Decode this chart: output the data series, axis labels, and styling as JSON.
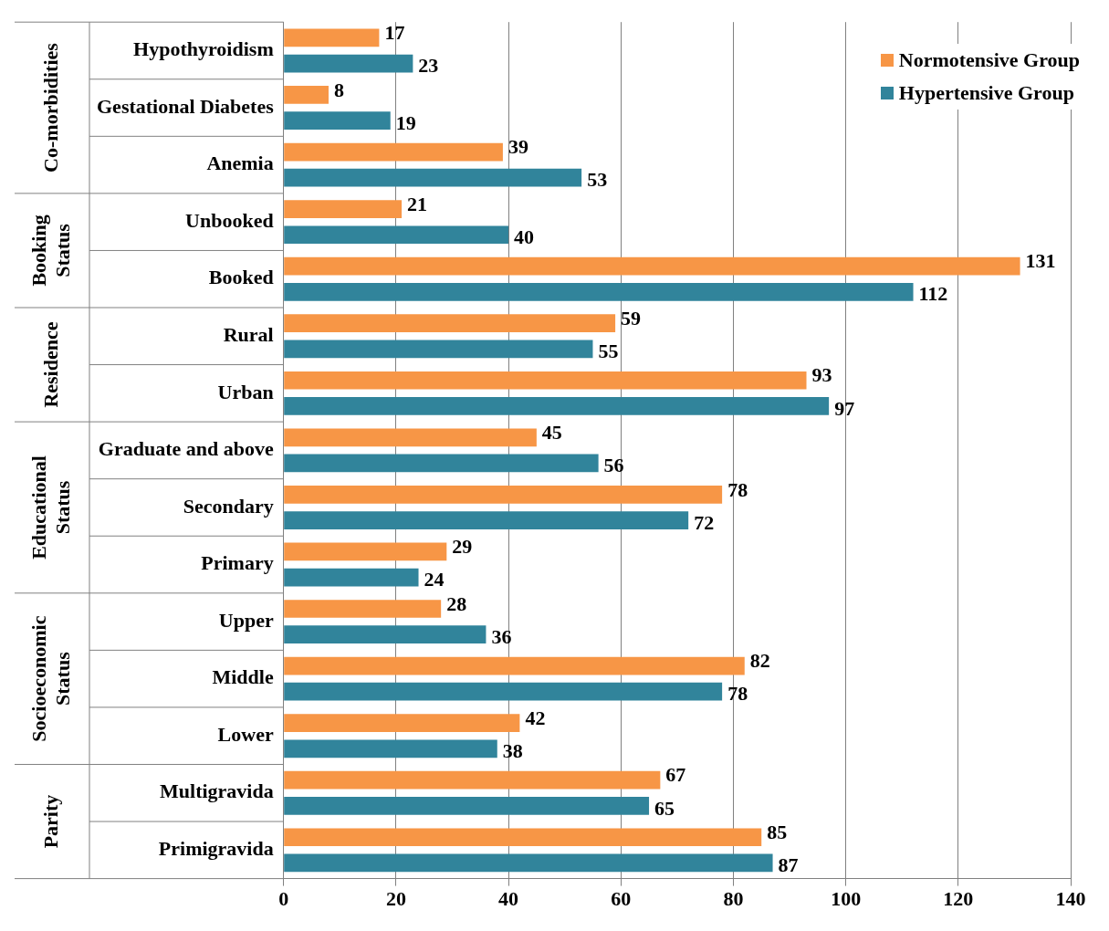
{
  "chart_data": {
    "type": "bar",
    "orientation": "horizontal",
    "categories": [
      "Hypothyroidism",
      "Gestational Diabetes",
      "Anemia",
      "Unbooked",
      "Booked",
      "Rural",
      "Urban",
      "Graduate and above",
      "Secondary",
      "Primary",
      "Upper",
      "Middle",
      "Lower",
      "Multigravida",
      "Primigravida"
    ],
    "series": [
      {
        "name": "Normotensive Group",
        "color": "#f79646",
        "values": [
          17,
          8,
          39,
          21,
          131,
          59,
          93,
          45,
          78,
          29,
          28,
          82,
          42,
          67,
          85
        ]
      },
      {
        "name": "Hypertensive Group",
        "color": "#31849b",
        "values": [
          23,
          19,
          53,
          40,
          112,
          55,
          97,
          56,
          72,
          24,
          36,
          78,
          38,
          65,
          87
        ]
      }
    ],
    "annotations": [
      "Co-morbidities",
      "Booking Status",
      "Residence",
      "Educational Status",
      "Socioeconomic Status",
      "Parity"
    ],
    "xlim": [
      0,
      140
    ],
    "xticks": [
      0,
      20,
      40,
      60,
      80,
      100,
      120,
      140
    ],
    "grid": "x",
    "legend": "top right",
    "data_labels": true
  }
}
